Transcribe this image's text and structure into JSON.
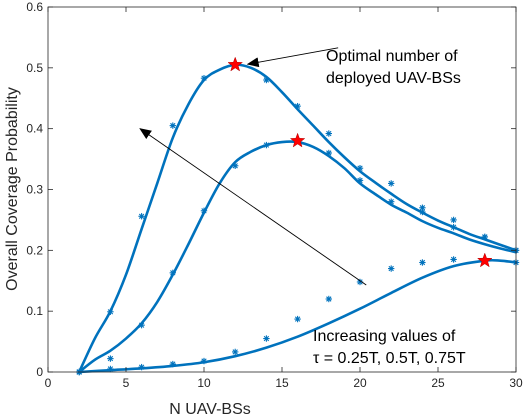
{
  "chart_data": {
    "type": "line",
    "title": "",
    "xlabel": "N UAV-BSs",
    "ylabel": "Overall Coverage Probability",
    "xlim": [
      0,
      30
    ],
    "ylim": [
      0,
      0.6
    ],
    "xticks": [
      0,
      5,
      10,
      15,
      20,
      25,
      30
    ],
    "yticks": [
      0,
      0.1,
      0.2,
      0.3,
      0.4,
      0.5,
      0.6
    ],
    "grid": false,
    "line_color": "#0072BD",
    "optimum_marker_color": "#FF0000",
    "series": [
      {
        "curve": [
          [
            2,
            0
          ],
          [
            3,
            0.055
          ],
          [
            4,
            0.1
          ],
          [
            5,
            0.16
          ],
          [
            6,
            0.235
          ],
          [
            7,
            0.31
          ],
          [
            8,
            0.385
          ],
          [
            9,
            0.44
          ],
          [
            10,
            0.48
          ],
          [
            11,
            0.497
          ],
          [
            12,
            0.505
          ],
          [
            13,
            0.5
          ],
          [
            14,
            0.485
          ],
          [
            15,
            0.46
          ],
          [
            16,
            0.432
          ],
          [
            17,
            0.405
          ],
          [
            18,
            0.378
          ],
          [
            19,
            0.353
          ],
          [
            20,
            0.33
          ],
          [
            21,
            0.311
          ],
          [
            22,
            0.293
          ],
          [
            23,
            0.276
          ],
          [
            24,
            0.262
          ],
          [
            25,
            0.249
          ],
          [
            26,
            0.238
          ],
          [
            27,
            0.227
          ],
          [
            28,
            0.218
          ],
          [
            29,
            0.209
          ],
          [
            30,
            0.2
          ]
        ],
        "sim_points": [
          [
            2,
            0
          ],
          [
            4,
            0.099
          ],
          [
            6,
            0.256
          ],
          [
            8,
            0.405
          ],
          [
            10,
            0.483
          ],
          [
            12,
            0.505
          ],
          [
            14,
            0.48
          ],
          [
            16,
            0.437
          ],
          [
            18,
            0.392
          ],
          [
            20,
            0.335
          ],
          [
            22,
            0.31
          ],
          [
            24,
            0.27
          ],
          [
            26,
            0.25
          ],
          [
            28,
            0.222
          ],
          [
            30,
            0.2
          ]
        ],
        "optimum": [
          12,
          0.505
        ]
      },
      {
        "curve": [
          [
            2,
            0
          ],
          [
            3,
            0.02
          ],
          [
            4,
            0.035
          ],
          [
            5,
            0.055
          ],
          [
            6,
            0.08
          ],
          [
            7,
            0.115
          ],
          [
            8,
            0.16
          ],
          [
            9,
            0.21
          ],
          [
            10,
            0.262
          ],
          [
            11,
            0.31
          ],
          [
            12,
            0.345
          ],
          [
            13,
            0.362
          ],
          [
            14,
            0.373
          ],
          [
            15,
            0.378
          ],
          [
            16,
            0.378
          ],
          [
            17,
            0.37
          ],
          [
            18,
            0.355
          ],
          [
            19,
            0.335
          ],
          [
            20,
            0.31
          ],
          [
            21,
            0.292
          ],
          [
            22,
            0.275
          ],
          [
            23,
            0.262
          ],
          [
            24,
            0.248
          ],
          [
            25,
            0.237
          ],
          [
            26,
            0.228
          ],
          [
            27,
            0.218
          ],
          [
            28,
            0.21
          ],
          [
            29,
            0.203
          ],
          [
            30,
            0.197
          ]
        ],
        "sim_points": [
          [
            2,
            0
          ],
          [
            4,
            0.022
          ],
          [
            6,
            0.077
          ],
          [
            8,
            0.163
          ],
          [
            10,
            0.265
          ],
          [
            12,
            0.339
          ],
          [
            14,
            0.373
          ],
          [
            16,
            0.38
          ],
          [
            18,
            0.36
          ],
          [
            20,
            0.315
          ],
          [
            22,
            0.28
          ],
          [
            24,
            0.263
          ],
          [
            26,
            0.238
          ],
          [
            28,
            0.222
          ],
          [
            30,
            0.2
          ]
        ],
        "optimum": [
          16,
          0.38
        ]
      },
      {
        "curve": [
          [
            2,
            0
          ],
          [
            4,
            0.003
          ],
          [
            6,
            0.006
          ],
          [
            8,
            0.01
          ],
          [
            10,
            0.016
          ],
          [
            12,
            0.026
          ],
          [
            14,
            0.04
          ],
          [
            16,
            0.058
          ],
          [
            18,
            0.08
          ],
          [
            20,
            0.104
          ],
          [
            22,
            0.13
          ],
          [
            24,
            0.155
          ],
          [
            26,
            0.174
          ],
          [
            28,
            0.183
          ],
          [
            29,
            0.183
          ],
          [
            30,
            0.18
          ]
        ],
        "sim_points": [
          [
            2,
            0
          ],
          [
            4,
            0.005
          ],
          [
            6,
            0.008
          ],
          [
            8,
            0.013
          ],
          [
            10,
            0.018
          ],
          [
            12,
            0.033
          ],
          [
            14,
            0.055
          ],
          [
            16,
            0.087
          ],
          [
            18,
            0.12
          ],
          [
            20,
            0.148
          ],
          [
            22,
            0.17
          ],
          [
            24,
            0.18
          ],
          [
            26,
            0.185
          ],
          [
            28,
            0.183
          ],
          [
            30,
            0.18
          ]
        ],
        "optimum": [
          28,
          0.183
        ]
      }
    ],
    "annotations": [
      {
        "lines": [
          "Optimal number of",
          "deployed UAV-BSs"
        ],
        "arrow_from": [
          18.6,
          0.533
        ],
        "arrow_to": [
          12.8,
          0.506
        ]
      },
      {
        "lines": [
          "Increasing values of",
          "τ = 0.25T, 0.5T, 0.75T"
        ],
        "arrow_from": [
          20.4,
          0.143
        ],
        "arrow_to": [
          5.9,
          0.4
        ]
      }
    ]
  }
}
